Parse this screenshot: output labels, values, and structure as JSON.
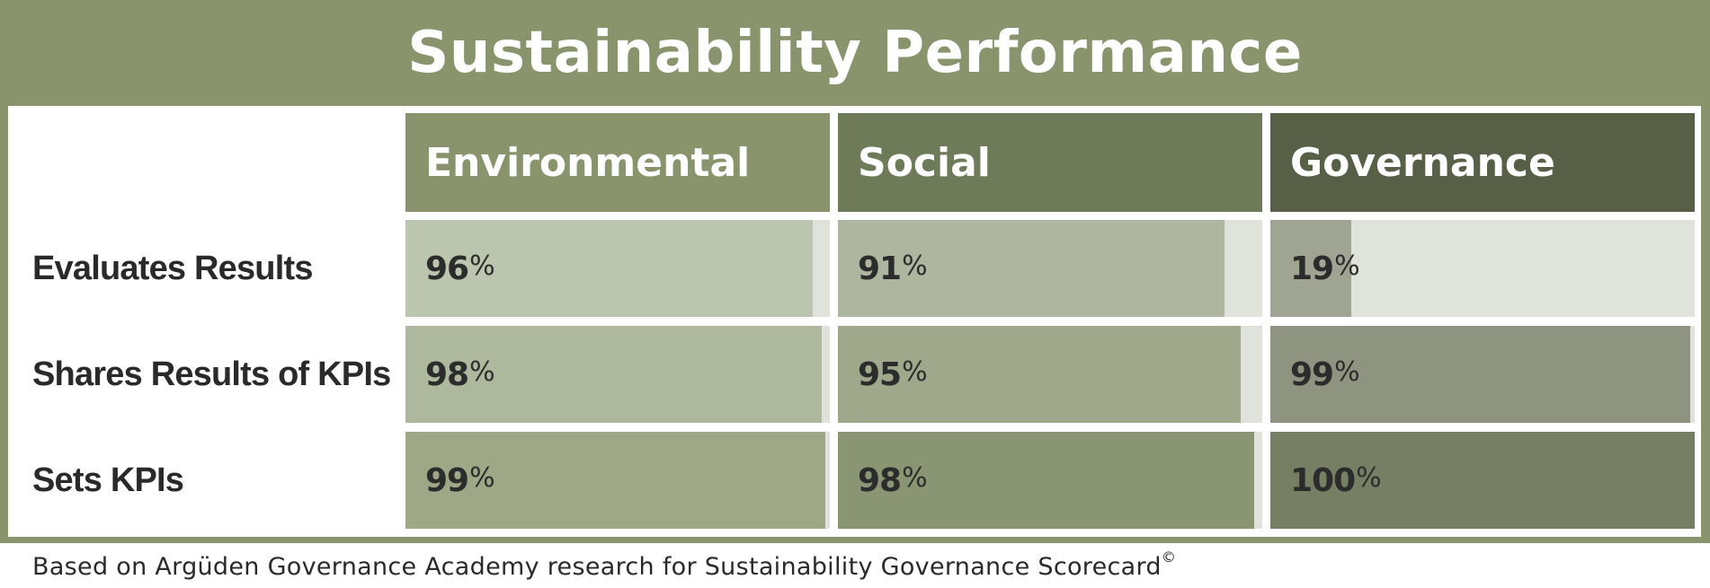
{
  "title": "Sustainability Performance",
  "columns": [
    {
      "label": "Environmental",
      "color": "#89946d"
    },
    {
      "label": "Social",
      "color": "#6e7b59"
    },
    {
      "label": "Governance",
      "color": "#575f47"
    }
  ],
  "rows": [
    {
      "label": "Evaluates Results"
    },
    {
      "label": "Shares Results of KPIs"
    },
    {
      "label": "Sets KPIs"
    }
  ],
  "cell_colors": {
    "track": "#e0e2dc",
    "fills": [
      [
        "#bcc5ad",
        "#aeb69f",
        "#a0a492"
      ],
      [
        "#aeb89c",
        "#9fa88a",
        "#8f9480"
      ],
      [
        "#9ea887",
        "#8a9574",
        "#767f64"
      ]
    ]
  },
  "footnote": {
    "text": "Based on Argüden Governance Academy research for Sustainability Governance Scorecard",
    "mark": "©"
  },
  "chart_data": {
    "type": "table",
    "title": "Sustainability Performance",
    "categories": [
      "Evaluates Results",
      "Shares Results of KPIs",
      "Sets KPIs"
    ],
    "series": [
      {
        "name": "Environmental",
        "values": [
          96,
          98,
          99
        ]
      },
      {
        "name": "Social",
        "values": [
          91,
          95,
          98
        ]
      },
      {
        "name": "Governance",
        "values": [
          19,
          99,
          100
        ]
      }
    ],
    "unit": "%",
    "value_range": [
      0,
      100
    ]
  }
}
